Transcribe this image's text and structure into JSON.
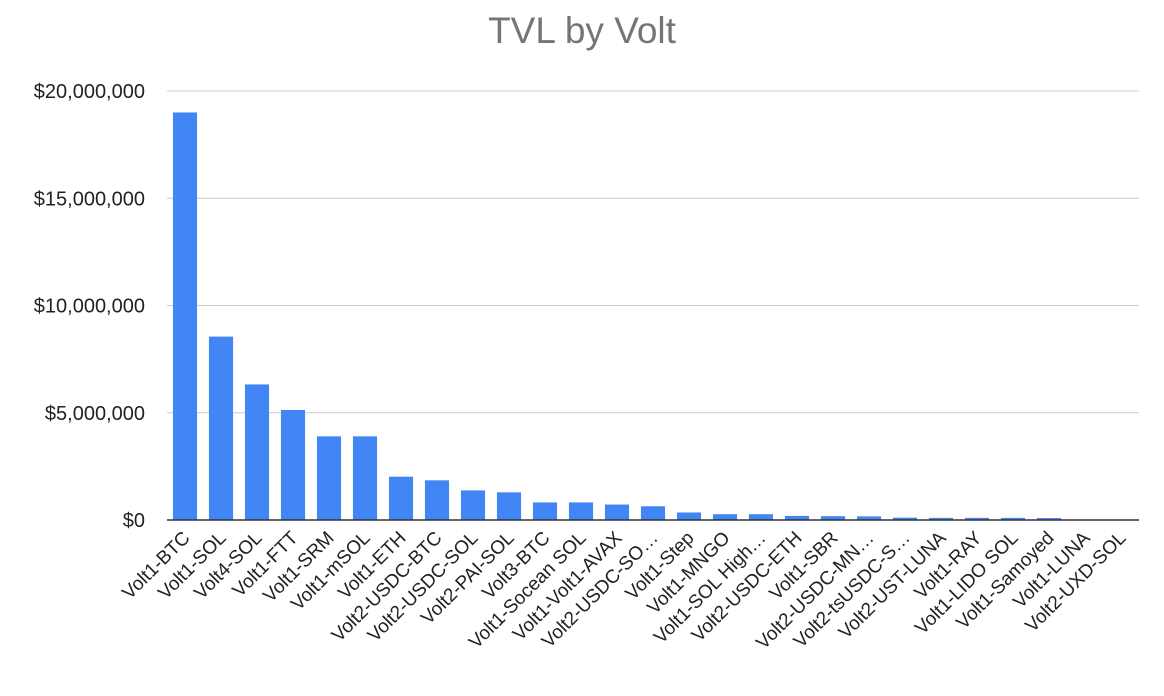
{
  "colors": {
    "bar": "#4285f4",
    "grid": "#cccccc",
    "axis": "#333333",
    "title": "#757575"
  },
  "chart_data": {
    "type": "bar",
    "title": "TVL by Volt",
    "xlabel": "",
    "ylabel": "",
    "ylim": [
      0,
      20000000
    ],
    "yticks": [
      0,
      5000000,
      10000000,
      15000000,
      20000000
    ],
    "ytick_labels": [
      "$0",
      "$5,000,000",
      "$10,000,000",
      "$15,000,000",
      "$20,000,000"
    ],
    "grid": true,
    "legend": "none",
    "categories": [
      "Volt1-BTC",
      "Volt1-SOL",
      "Volt4-SOL",
      "Volt1-FTT",
      "Volt1-SRM",
      "Volt1-mSOL",
      "Volt1-ETH",
      "Volt2-USDC-BTC",
      "Volt2-USDC-SOL",
      "Volt2-PAI-SOL",
      "Volt3-BTC",
      "Volt1-Socean SOL",
      "Volt1-Volt1-AVAX",
      "Volt2-USDC-SO…",
      "Volt1-Step",
      "Volt1-MNGO",
      "Volt1-SOL High…",
      "Volt2-USDC-ETH",
      "Volt1-SBR",
      "Volt2-USDC-MN…",
      "Volt2-tsUSDC-S…",
      "Volt2-UST-LUNA",
      "Volt1-RAY",
      "Volt1-LIDO SOL",
      "Volt1-Samoyed",
      "Volt1-LUNA",
      "Volt2-UXD-SOL"
    ],
    "values": [
      19000000,
      8550000,
      6320000,
      5130000,
      3900000,
      3900000,
      2020000,
      1850000,
      1380000,
      1290000,
      820000,
      820000,
      720000,
      640000,
      350000,
      270000,
      270000,
      190000,
      180000,
      170000,
      110000,
      100000,
      100000,
      100000,
      90000,
      20000,
      10000
    ]
  }
}
